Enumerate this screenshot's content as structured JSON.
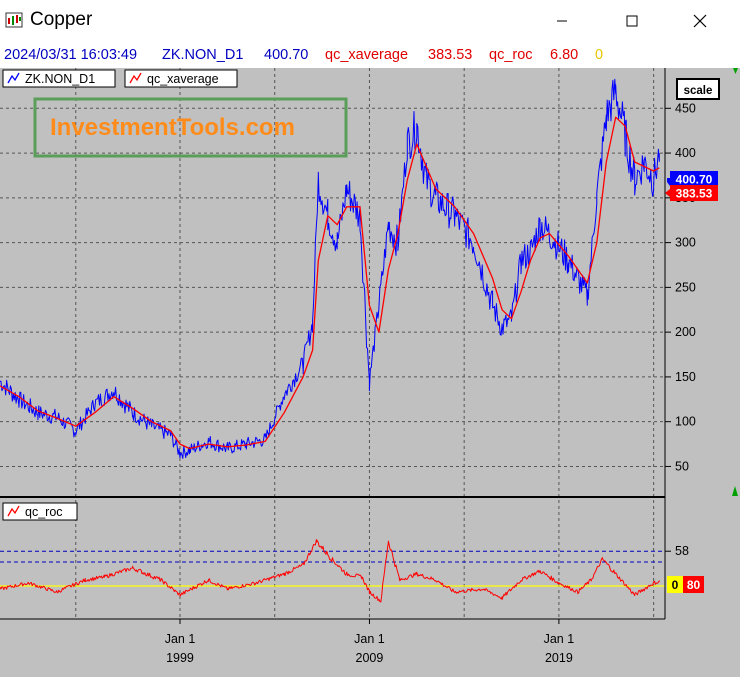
{
  "window": {
    "title": "Copper",
    "minimize_icon": "minimize-icon",
    "maximize_icon": "maximize-icon",
    "close_icon": "close-icon"
  },
  "infobar": {
    "datetime": "2024/03/31 16:03:49",
    "symbol": "ZK.NON_D1",
    "symbol_value": "400.70",
    "avg_name": "qc_xaverage",
    "avg_value": "383.53",
    "roc_name": "qc_roc",
    "roc_value": "6.80",
    "zero_value": "0"
  },
  "watermark": "InvestmentTools.com",
  "scale_button": "scale",
  "colors": {
    "background": "#c0c0c0",
    "price": "#0000ff",
    "average": "#ff0000",
    "roc": "#ff0000",
    "zero_line": "#ffff00",
    "watermark_text": "#ff8c1a",
    "watermark_border": "#5a9e5a"
  },
  "chart_data": [
    {
      "type": "line",
      "legend": [
        "ZK.NON_D1",
        "qc_xaverage"
      ],
      "y_ticks": [
        50,
        100,
        150,
        200,
        250,
        300,
        350,
        400,
        450
      ],
      "ylim": [
        17,
        495
      ],
      "x_labels": [
        {
          "line1": "Jan 1",
          "line2": "1999",
          "x": 1999
        },
        {
          "line1": "Jan 1",
          "line2": "2009",
          "x": 2009
        },
        {
          "line1": "Jan 1",
          "line2": "2019",
          "x": 2019
        }
      ],
      "xlim": [
        1989.5,
        2024.6
      ],
      "current_labels": {
        "price": "400.70",
        "average": "383.53"
      },
      "series": [
        {
          "name": "ZK.NON_D1",
          "color": "#0000ff",
          "x": [
            1989.5,
            1990.5,
            1991.5,
            1992.5,
            1993.5,
            1994.5,
            1995.5,
            1996.5,
            1997.5,
            1998.5,
            1999.0,
            1999.5,
            2000.5,
            2001.5,
            2002.5,
            2003.5,
            2004.5,
            2005.5,
            2006.0,
            2006.3,
            2006.8,
            2007.3,
            2007.8,
            2008.5,
            2009.0,
            2009.5,
            2010.0,
            2010.5,
            2011.0,
            2011.5,
            2012.0,
            2012.5,
            2013.5,
            2014.5,
            2015.5,
            2016.0,
            2016.5,
            2017.0,
            2017.5,
            2018.0,
            2018.5,
            2019.5,
            2020.0,
            2020.5,
            2021.0,
            2021.5,
            2022.0,
            2022.5,
            2023.0,
            2023.5,
            2024.0,
            2024.3
          ],
          "y": [
            145,
            125,
            110,
            105,
            90,
            120,
            135,
            110,
            95,
            85,
            65,
            68,
            78,
            70,
            75,
            80,
            130,
            165,
            210,
            370,
            330,
            300,
            360,
            330,
            145,
            230,
            320,
            300,
            410,
            430,
            370,
            350,
            330,
            300,
            230,
            205,
            215,
            280,
            290,
            320,
            310,
            280,
            260,
            240,
            350,
            440,
            470,
            420,
            370,
            390,
            370,
            400
          ]
        },
        {
          "name": "qc_xaverage",
          "color": "#ff0000",
          "x": [
            1989.5,
            1990.5,
            1991.5,
            1992.5,
            1993.5,
            1994.5,
            1995.5,
            1996.5,
            1997.5,
            1998.5,
            1999.0,
            1999.5,
            2000.5,
            2001.5,
            2002.5,
            2003.5,
            2004.5,
            2005.5,
            2006.0,
            2006.3,
            2006.8,
            2007.3,
            2007.8,
            2008.5,
            2009.0,
            2009.5,
            2010.0,
            2010.5,
            2011.0,
            2011.5,
            2012.0,
            2012.5,
            2013.5,
            2014.5,
            2015.5,
            2016.0,
            2016.5,
            2017.0,
            2017.5,
            2018.0,
            2018.5,
            2019.5,
            2020.0,
            2020.5,
            2021.0,
            2021.5,
            2022.0,
            2022.5,
            2023.0,
            2023.5,
            2024.0,
            2024.3
          ],
          "y": [
            140,
            128,
            112,
            104,
            95,
            110,
            128,
            115,
            100,
            90,
            75,
            70,
            75,
            72,
            74,
            78,
            110,
            150,
            180,
            280,
            330,
            320,
            340,
            340,
            230,
            200,
            270,
            310,
            370,
            410,
            385,
            360,
            340,
            310,
            260,
            225,
            215,
            245,
            280,
            305,
            310,
            285,
            270,
            255,
            300,
            390,
            440,
            430,
            390,
            385,
            380,
            383.5
          ]
        }
      ]
    },
    {
      "type": "line",
      "legend": [
        "qc_roc"
      ],
      "y_ticks": [
        58
      ],
      "reference_lines": [
        58,
        40
      ],
      "zero_line": 0,
      "current_label": "6.80",
      "series": [
        {
          "name": "qc_roc",
          "color": "#ff0000",
          "x": [
            1989.5,
            1991.0,
            1992.5,
            1994.0,
            1995.0,
            1996.5,
            1998.0,
            1999.0,
            2000.5,
            2001.5,
            2003.0,
            2004.5,
            2005.5,
            2006.2,
            2007.0,
            2007.8,
            2008.6,
            2009.0,
            2009.6,
            2010.0,
            2010.6,
            2011.5,
            2012.5,
            2013.5,
            2015.0,
            2016.0,
            2017.0,
            2018.0,
            2019.0,
            2020.0,
            2020.7,
            2021.3,
            2022.0,
            2023.0,
            2024.0,
            2024.3
          ],
          "y": [
            -5,
            5,
            -10,
            10,
            15,
            30,
            10,
            -15,
            10,
            -5,
            5,
            20,
            35,
            75,
            45,
            20,
            15,
            -10,
            -25,
            75,
            10,
            20,
            10,
            -10,
            -5,
            -20,
            10,
            25,
            5,
            -10,
            10,
            45,
            20,
            -15,
            5,
            6.8
          ]
        }
      ]
    }
  ]
}
